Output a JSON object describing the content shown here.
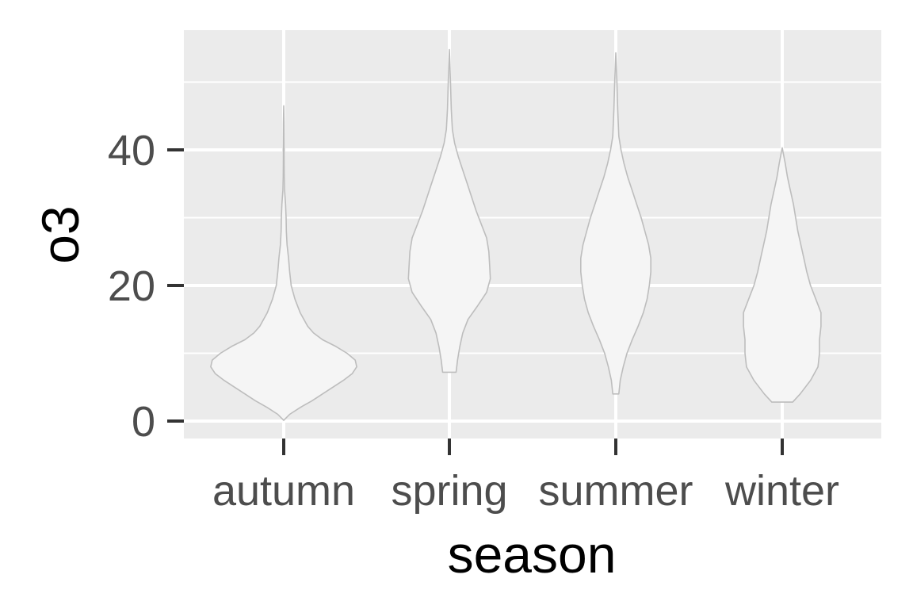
{
  "chart_data": {
    "type": "violin",
    "xlabel": "season",
    "ylabel": "o3",
    "categories": [
      "autumn",
      "spring",
      "summer",
      "winter"
    ],
    "y_ticks": [
      0,
      20,
      40
    ],
    "ylim": [
      -2.6,
      57.5
    ],
    "grid": true,
    "colors": {
      "panel": "#ebebeb",
      "grid": "#ffffff",
      "violin_fill": "#f5f5f5",
      "violin_stroke": "#bdbdbd",
      "tick": "#333333"
    },
    "violins": [
      {
        "category": "autumn",
        "min": 0.1,
        "max": 46.5,
        "profile": [
          [
            0.1,
            0.0
          ],
          [
            1,
            0.08
          ],
          [
            2,
            0.22
          ],
          [
            3,
            0.38
          ],
          [
            4,
            0.52
          ],
          [
            5,
            0.66
          ],
          [
            6,
            0.8
          ],
          [
            7,
            0.92
          ],
          [
            8,
            0.98
          ],
          [
            9,
            0.96
          ],
          [
            10,
            0.85
          ],
          [
            11,
            0.7
          ],
          [
            12,
            0.52
          ],
          [
            13,
            0.4
          ],
          [
            14,
            0.32
          ],
          [
            15,
            0.27
          ],
          [
            16,
            0.22
          ],
          [
            18,
            0.15
          ],
          [
            20,
            0.1
          ],
          [
            22,
            0.08
          ],
          [
            24,
            0.065
          ],
          [
            26,
            0.045
          ],
          [
            28,
            0.035
          ],
          [
            30,
            0.032
          ],
          [
            32,
            0.024
          ],
          [
            34,
            0.012
          ],
          [
            36,
            0.008
          ],
          [
            40,
            0.006
          ],
          [
            44,
            0.004
          ],
          [
            46.5,
            0.0
          ]
        ]
      },
      {
        "category": "spring",
        "min": 7.2,
        "max": 54.8,
        "profile": [
          [
            7.2,
            0.09
          ],
          [
            9,
            0.11
          ],
          [
            11,
            0.14
          ],
          [
            13,
            0.18
          ],
          [
            15,
            0.25
          ],
          [
            17,
            0.38
          ],
          [
            19,
            0.5
          ],
          [
            21,
            0.55
          ],
          [
            23,
            0.54
          ],
          [
            25,
            0.53
          ],
          [
            27,
            0.5
          ],
          [
            29,
            0.43
          ],
          [
            31,
            0.36
          ],
          [
            33,
            0.3
          ],
          [
            35,
            0.24
          ],
          [
            37,
            0.18
          ],
          [
            39,
            0.12
          ],
          [
            41,
            0.07
          ],
          [
            43,
            0.04
          ],
          [
            46,
            0.025
          ],
          [
            50,
            0.015
          ],
          [
            54.8,
            0.0
          ]
        ]
      },
      {
        "category": "summer",
        "min": 4.0,
        "max": 54.3,
        "profile": [
          [
            4.0,
            0.04
          ],
          [
            6,
            0.06
          ],
          [
            8,
            0.1
          ],
          [
            10,
            0.15
          ],
          [
            12,
            0.22
          ],
          [
            14,
            0.3
          ],
          [
            16,
            0.37
          ],
          [
            18,
            0.42
          ],
          [
            20,
            0.45
          ],
          [
            22,
            0.47
          ],
          [
            24,
            0.47
          ],
          [
            26,
            0.44
          ],
          [
            28,
            0.39
          ],
          [
            30,
            0.34
          ],
          [
            32,
            0.28
          ],
          [
            34,
            0.22
          ],
          [
            36,
            0.16
          ],
          [
            38,
            0.11
          ],
          [
            40,
            0.07
          ],
          [
            42,
            0.04
          ],
          [
            46,
            0.025
          ],
          [
            50,
            0.015
          ],
          [
            54.3,
            0.0
          ]
        ]
      },
      {
        "category": "winter",
        "min": 2.8,
        "max": 40.3,
        "profile": [
          [
            2.8,
            0.14
          ],
          [
            4,
            0.24
          ],
          [
            6,
            0.38
          ],
          [
            8,
            0.48
          ],
          [
            10,
            0.5
          ],
          [
            12,
            0.5
          ],
          [
            14,
            0.52
          ],
          [
            16,
            0.52
          ],
          [
            18,
            0.45
          ],
          [
            20,
            0.38
          ],
          [
            22,
            0.33
          ],
          [
            24,
            0.29
          ],
          [
            26,
            0.25
          ],
          [
            28,
            0.21
          ],
          [
            30,
            0.18
          ],
          [
            32,
            0.15
          ],
          [
            34,
            0.11
          ],
          [
            36,
            0.07
          ],
          [
            38,
            0.04
          ],
          [
            40.3,
            0.0
          ]
        ]
      }
    ]
  }
}
